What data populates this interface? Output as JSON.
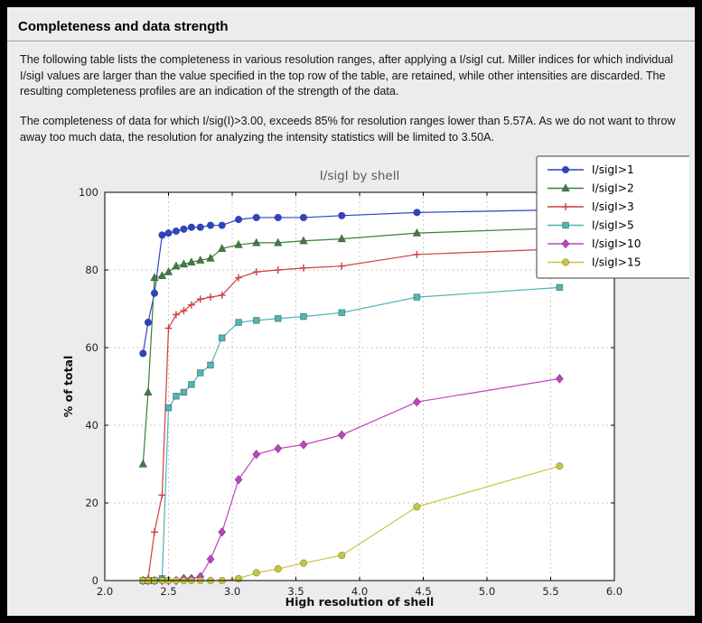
{
  "page": {
    "title": "Completeness and data strength",
    "paragraphs": [
      "The following table lists the completeness in various resolution ranges, after applying a I/sigI cut. Miller indices for which individual I/sigI values are larger than the value specified in the top row of the table, are retained, while other intensities are discarded. The resulting completeness profiles are an indication of the strength of the data.",
      "The completeness of data for which I/sig(I)>3.00, exceeds  85% for resolution ranges lower than 5.57A. As we do not want to throw away too much data, the resolution for analyzing the intensity statistics will be limited to 3.50A."
    ]
  },
  "chart_data": {
    "type": "line",
    "title": "I/sigI by shell",
    "xlabel": "High resolution of shell",
    "ylabel": "% of total",
    "xlim": [
      2.0,
      6.0
    ],
    "ylim": [
      0,
      100
    ],
    "xticks": [
      2.0,
      2.5,
      3.0,
      3.5,
      4.0,
      4.5,
      5.0,
      5.5,
      6.0
    ],
    "xtick_labels": [
      "2.0",
      "2.5",
      "3.0",
      "3.5",
      "4.0",
      "4.5",
      "5.0",
      "5.5",
      "6.0"
    ],
    "yticks": [
      0,
      20,
      40,
      60,
      80,
      100
    ],
    "grid": "dashed",
    "legend_position": "top-right",
    "plot_bg": "#ffffff",
    "figure_bg": "#ececec",
    "grid_color": "#c9c9c9",
    "x": [
      2.3,
      2.34,
      2.39,
      2.45,
      2.5,
      2.56,
      2.62,
      2.68,
      2.75,
      2.83,
      2.92,
      3.05,
      3.19,
      3.36,
      3.56,
      3.86,
      4.45,
      5.57
    ],
    "series": [
      {
        "name": "I/sigI>1",
        "color": "#2d43c8",
        "marker": "circle",
        "values": [
          58.5,
          66.5,
          74.0,
          89.0,
          89.5,
          90.0,
          90.5,
          91.0,
          91.0,
          91.5,
          91.5,
          93.0,
          93.5,
          93.5,
          93.5,
          94.0,
          94.8,
          95.5
        ]
      },
      {
        "name": "I/sigI>2",
        "color": "#3e7d3e",
        "marker": "triangle",
        "values": [
          30.0,
          48.5,
          78.0,
          78.5,
          79.5,
          81.0,
          81.5,
          82.0,
          82.5,
          83.0,
          85.5,
          86.5,
          87.0,
          87.0,
          87.5,
          88.0,
          89.5,
          90.8
        ]
      },
      {
        "name": "I/sigI>3",
        "color": "#cc4040",
        "marker": "plus",
        "values": [
          0.0,
          0.5,
          12.5,
          22.0,
          65.0,
          68.5,
          69.5,
          71.0,
          72.5,
          73.0,
          73.5,
          78.0,
          79.5,
          80.0,
          80.5,
          81.0,
          84.0,
          85.4
        ]
      },
      {
        "name": "I/sigI>5",
        "color": "#4fb5b5",
        "marker": "square",
        "values": [
          0.0,
          0.0,
          0.0,
          0.5,
          44.5,
          47.5,
          48.5,
          50.5,
          53.5,
          55.5,
          62.5,
          66.5,
          67.0,
          67.5,
          68.0,
          69.0,
          73.0,
          75.5
        ]
      },
      {
        "name": "I/sigI>10",
        "color": "#c341c3",
        "marker": "diamond",
        "values": [
          0.0,
          0.0,
          0.0,
          0.0,
          0.0,
          0.0,
          0.5,
          0.5,
          1.0,
          5.5,
          12.5,
          26.0,
          32.5,
          34.0,
          35.0,
          37.5,
          46.0,
          52.0
        ]
      },
      {
        "name": "I/sigI>15",
        "color": "#c6c63c",
        "marker": "circle",
        "values": [
          0.0,
          0.0,
          0.0,
          0.0,
          0.0,
          0.0,
          0.0,
          0.0,
          0.0,
          0.0,
          0.0,
          0.5,
          2.0,
          3.0,
          4.5,
          6.5,
          19.0,
          29.5
        ]
      }
    ]
  }
}
